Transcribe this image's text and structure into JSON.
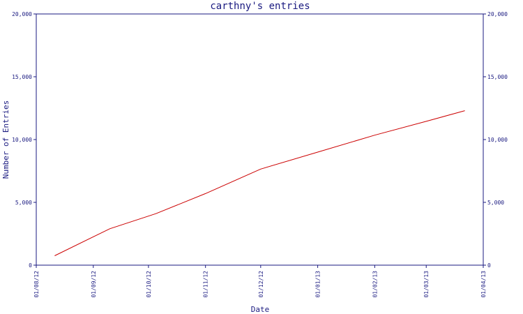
{
  "chart_data": {
    "type": "line",
    "title": "carthny's entries",
    "xlabel": "Date",
    "ylabel": "Number of Entries",
    "ylim": [
      0,
      20000
    ],
    "y_ticks": [
      0,
      5000,
      10000,
      15000,
      20000
    ],
    "y_tick_labels": [
      "0",
      "5,000",
      "10,000",
      "15,000",
      "20,000"
    ],
    "x_range": [
      "2012-08-01",
      "2013-04-01"
    ],
    "x_ticks": [
      "2012-08-01",
      "2012-09-01",
      "2012-10-01",
      "2012-11-01",
      "2012-12-01",
      "2013-01-01",
      "2013-02-01",
      "2013-03-01",
      "2013-04-01"
    ],
    "x_tick_labels": [
      "01/08/12",
      "01/09/12",
      "01/10/12",
      "01/11/12",
      "01/12/12",
      "01/01/13",
      "01/02/13",
      "01/03/13",
      "01/04/13"
    ],
    "grid": false,
    "series": [
      {
        "color": "#cc0000",
        "points": [
          {
            "x": "2012-08-11",
            "y": 750
          },
          {
            "x": "2012-09-10",
            "y": 2900
          },
          {
            "x": "2012-10-05",
            "y": 4100
          },
          {
            "x": "2012-11-01",
            "y": 5700
          },
          {
            "x": "2012-12-01",
            "y": 7650
          },
          {
            "x": "2013-01-01",
            "y": 9000
          },
          {
            "x": "2013-02-01",
            "y": 10350
          },
          {
            "x": "2013-03-01",
            "y": 11450
          },
          {
            "x": "2013-03-22",
            "y": 12300
          }
        ]
      }
    ]
  }
}
